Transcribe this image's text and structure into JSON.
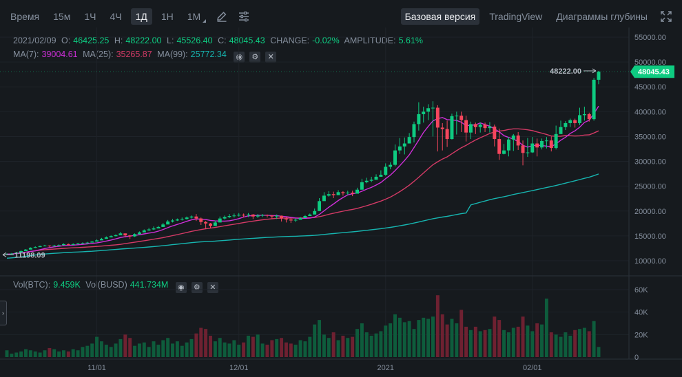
{
  "toolbar": {
    "timeframes": [
      {
        "label": "Время",
        "active": false
      },
      {
        "label": "15м",
        "active": false
      },
      {
        "label": "1Ч",
        "active": false
      },
      {
        "label": "4Ч",
        "active": false
      },
      {
        "label": "1Д",
        "active": true
      },
      {
        "label": "1Н",
        "active": false
      },
      {
        "label": "1М",
        "active": false
      }
    ],
    "tools": [
      "pencil-icon",
      "settings-sliders-icon"
    ],
    "views": [
      {
        "label": "Базовая версия",
        "active": true
      },
      {
        "label": "TradingView",
        "active": false
      },
      {
        "label": "Диаграммы глубины",
        "active": false
      }
    ],
    "expand_icon": "fullscreen-icon"
  },
  "ohlc": {
    "date": "2021/02/09",
    "open_label": "O:",
    "open": "46425.25",
    "high_label": "H:",
    "high": "48222.00",
    "low_label": "L:",
    "low": "45526.40",
    "close_label": "C:",
    "close": "48045.43",
    "change_label": "CHANGE:",
    "change": "-0.02%",
    "amplitude_label": "AMPLITUDE:",
    "amplitude": "5.61%"
  },
  "ma": {
    "ma7_label": "MA(7):",
    "ma7": "39004.61",
    "ma25_label": "MA(25):",
    "ma25": "35265.87",
    "ma99_label": "MA(99):",
    "ma99": "25772.34"
  },
  "vol": {
    "btc_label": "Vol(BTC):",
    "btc": "9.459K",
    "busd_label": "Vol(BUSD)",
    "busd": "441.734M"
  },
  "indicator_icons": [
    "eye-icon",
    "settings-icon",
    "close-icon"
  ],
  "colors": {
    "up": "#0ecb81",
    "down": "#f6465d",
    "ma7": "#cf2fd9",
    "ma25": "#d43a66",
    "ma99": "#16b5b0",
    "background": "#161a1e"
  },
  "chart_data": {
    "type": "candlestick",
    "price_axis": {
      "ticks": [
        "55000.00",
        "50000.00",
        "45000.00",
        "40000.00",
        "35000.00",
        "30000.00",
        "25000.00",
        "20000.00",
        "15000.00",
        "10000.00"
      ],
      "range": [
        5000,
        56500
      ]
    },
    "volume_axis": {
      "ticks": [
        "60K",
        "40K",
        "20K",
        "0"
      ],
      "range": [
        0,
        66000
      ]
    },
    "x_ticks": [
      {
        "label": "11/01",
        "index": 19
      },
      {
        "label": "12/01",
        "index": 49
      },
      {
        "label": "2021",
        "index": 80
      },
      {
        "label": "02/01",
        "index": 111
      }
    ],
    "current_price_label": "48045.43",
    "current_price": 48045.43,
    "high_marker_label": "48222.00",
    "high_marker": 48222,
    "low_marker_label": "11198.09",
    "low_marker": 11198.09,
    "close": [
      11300,
      11450,
      11650,
      11950,
      12250,
      12600,
      12750,
      12950,
      13050,
      12900,
      13050,
      13150,
      13350,
      13200,
      13350,
      13450,
      13550,
      13650,
      13850,
      14100,
      14400,
      14700,
      14950,
      15150,
      15500,
      15100,
      14900,
      15350,
      15700,
      16100,
      16300,
      16500,
      16800,
      17300,
      17900,
      18100,
      18300,
      18400,
      18700,
      18900,
      18500,
      17800,
      17500,
      17000,
      17700,
      18500,
      18800,
      19000,
      19100,
      19250,
      19200,
      19300,
      18900,
      19100,
      19200,
      19100,
      18900,
      19050,
      18500,
      18300,
      18100,
      18250,
      18600,
      19000,
      19300,
      20000,
      22000,
      23100,
      23400,
      23200,
      23800,
      23600,
      23700,
      23500,
      24300,
      25800,
      26100,
      26300,
      26900,
      27300,
      28900,
      29300,
      32200,
      33000,
      33600,
      34900,
      37500,
      39500,
      40000,
      40700,
      40800,
      36800,
      36500,
      34500,
      39100,
      39200,
      38300,
      35800,
      37500,
      36900,
      37400,
      36700,
      37000,
      34500,
      31500,
      32200,
      34400,
      35200,
      33200,
      31700,
      31800,
      33600,
      32800,
      34100,
      34200,
      32700,
      35500,
      36900,
      37700,
      38300,
      37700,
      39300,
      39500,
      38500,
      46425,
      48045
    ],
    "high": [
      11500,
      11550,
      11750,
      12100,
      12350,
      12700,
      12900,
      13050,
      13200,
      13100,
      13200,
      13300,
      13500,
      13450,
      13500,
      13600,
      13700,
      13800,
      14000,
      14300,
      14600,
      14900,
      15100,
      15300,
      15800,
      15500,
      15200,
      15500,
      15900,
      16300,
      16600,
      16900,
      17000,
      17600,
      18200,
      18400,
      18500,
      18700,
      18900,
      19100,
      19400,
      18700,
      18000,
      17600,
      18100,
      18900,
      19100,
      19400,
      19500,
      19600,
      19500,
      19600,
      19400,
      19400,
      19400,
      19300,
      19200,
      19300,
      19100,
      18800,
      18600,
      18500,
      18800,
      19200,
      19500,
      20500,
      22600,
      23800,
      24000,
      23900,
      24200,
      24000,
      24100,
      24100,
      24700,
      26500,
      26700,
      26900,
      27400,
      28200,
      29600,
      29800,
      33400,
      34700,
      34800,
      35700,
      38000,
      41900,
      41000,
      41500,
      42100,
      41300,
      37700,
      38200,
      39600,
      40000,
      40000,
      39200,
      38000,
      37800,
      37800,
      37800,
      37900,
      37400,
      36600,
      33500,
      34900,
      35500,
      35900,
      34200,
      34700,
      34900,
      34600,
      34600,
      34900,
      35000,
      37200,
      38200,
      38100,
      38600,
      38600,
      40800,
      41000,
      39800,
      46800,
      48222
    ],
    "low": [
      11198,
      11300,
      11500,
      11800,
      12100,
      12400,
      12550,
      12750,
      12900,
      12750,
      12850,
      12950,
      13100,
      13050,
      13150,
      13300,
      13400,
      13500,
      13700,
      13900,
      14200,
      14500,
      14700,
      14900,
      15200,
      14700,
      14400,
      14800,
      15300,
      15800,
      16000,
      16200,
      16500,
      16900,
      17600,
      17700,
      18000,
      18100,
      18300,
      18500,
      18000,
      17200,
      16400,
      16600,
      17100,
      18000,
      18300,
      18600,
      18700,
      18900,
      18700,
      18800,
      18400,
      18600,
      18800,
      18700,
      18500,
      18400,
      17900,
      17700,
      17600,
      17800,
      18300,
      18700,
      19000,
      19700,
      21800,
      22300,
      22900,
      22600,
      23300,
      23100,
      23300,
      23000,
      23900,
      24700,
      25600,
      25800,
      26300,
      26900,
      27100,
      28400,
      29000,
      31500,
      31400,
      33800,
      33800,
      36200,
      37800,
      38300,
      35000,
      32000,
      32200,
      32900,
      34400,
      35400,
      35900,
      34000,
      34500,
      35500,
      35800,
      35900,
      35800,
      33000,
      30300,
      31400,
      31000,
      32100,
      32300,
      29200,
      30900,
      31700,
      31000,
      32400,
      32600,
      32000,
      32400,
      35800,
      36300,
      36900,
      36800,
      37300,
      38200,
      38000,
      38200,
      45526
    ],
    "volume": [
      6,
      3,
      4,
      5,
      7,
      6,
      5,
      4,
      6,
      8,
      7,
      5,
      6,
      5,
      7,
      6,
      9,
      10,
      12,
      18,
      14,
      11,
      9,
      12,
      16,
      20,
      17,
      10,
      12,
      13,
      9,
      14,
      11,
      15,
      17,
      12,
      14,
      10,
      13,
      16,
      21,
      26,
      25,
      19,
      14,
      17,
      13,
      12,
      15,
      11,
      13,
      19,
      18,
      20,
      12,
      11,
      15,
      16,
      17,
      13,
      12,
      11,
      15,
      14,
      18,
      29,
      33,
      20,
      17,
      22,
      15,
      19,
      17,
      18,
      25,
      30,
      22,
      19,
      21,
      23,
      28,
      30,
      38,
      35,
      31,
      32,
      25,
      33,
      35,
      34,
      36,
      55,
      38,
      29,
      34,
      30,
      42,
      27,
      24,
      27,
      23,
      24,
      25,
      36,
      33,
      24,
      22,
      26,
      27,
      36,
      28,
      23,
      30,
      29,
      52,
      22,
      20,
      18,
      22,
      19,
      24,
      25,
      26,
      23,
      32,
      9
    ]
  }
}
